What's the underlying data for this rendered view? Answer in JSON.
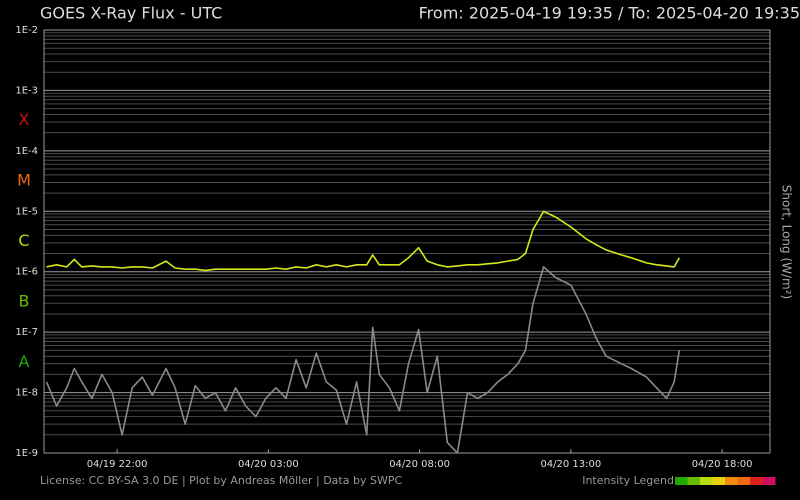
{
  "chart_data": {
    "type": "line",
    "title": "GOES X-Ray Flux - UTC",
    "range_label": "From: 2025-04-19 19:35  /  To: 2025-04-20 19:35",
    "y_label": "Short, Long (W/m²)",
    "footer": "License: CC BY-SA 3.0 DE | Plot by Andreas Möller | Data by SWPC",
    "log_scale": true,
    "grid": true,
    "minor_grid": true,
    "xlim": [
      "2025-04-19 19:35",
      "2025-04-20 19:35"
    ],
    "xticks": [
      {
        "value": "2025-04-19 22:00",
        "label": "04/19 22:00"
      },
      {
        "value": "2025-04-20 03:00",
        "label": "04/20 03:00"
      },
      {
        "value": "2025-04-20 08:00",
        "label": "04/20 08:00"
      },
      {
        "value": "2025-04-20 13:00",
        "label": "04/20 13:00"
      },
      {
        "value": "2025-04-20 18:00",
        "label": "04/20 18:00"
      }
    ],
    "ylim": [
      1e-09,
      0.01
    ],
    "yticks": [
      {
        "value": 1e-09,
        "label": "1E-9"
      },
      {
        "value": 1e-08,
        "label": "1E-8"
      },
      {
        "value": 1e-07,
        "label": "1E-7"
      },
      {
        "value": 1e-06,
        "label": "1E-6"
      },
      {
        "value": 1e-05,
        "label": "1E-5"
      },
      {
        "value": 0.0001,
        "label": "1E-4"
      },
      {
        "value": 0.001,
        "label": "1E-3"
      },
      {
        "value": 0.01,
        "label": "1E-2"
      }
    ],
    "classes": [
      {
        "name": "A",
        "min": 1e-08,
        "color": "#22aa00"
      },
      {
        "name": "B",
        "min": 1e-07,
        "color": "#66bb00"
      },
      {
        "name": "C",
        "min": 1e-06,
        "color": "#c8d810"
      },
      {
        "name": "M",
        "min": 1e-05,
        "color": "#ee6a10"
      },
      {
        "name": "X",
        "min": 0.0001,
        "color": "#cc1010"
      }
    ],
    "intensity_legend": {
      "label": "Intensity Legend",
      "colors": [
        "#22aa00",
        "#66bb00",
        "#b8d810",
        "#e8d010",
        "#ee8a10",
        "#ee6a10",
        "#dd2020",
        "#cc1060"
      ]
    },
    "x": [
      "2025-04-19 19:40",
      "2025-04-19 20:00",
      "2025-04-19 20:20",
      "2025-04-19 20:35",
      "2025-04-19 20:50",
      "2025-04-19 21:10",
      "2025-04-19 21:30",
      "2025-04-19 21:50",
      "2025-04-19 22:10",
      "2025-04-19 22:30",
      "2025-04-19 22:50",
      "2025-04-19 23:10",
      "2025-04-19 23:37",
      "2025-04-19 23:55",
      "2025-04-20 00:15",
      "2025-04-20 00:35",
      "2025-04-20 00:55",
      "2025-04-20 01:15",
      "2025-04-20 01:35",
      "2025-04-20 01:55",
      "2025-04-20 02:15",
      "2025-04-20 02:35",
      "2025-04-20 02:55",
      "2025-04-20 03:15",
      "2025-04-20 03:35",
      "2025-04-20 03:55",
      "2025-04-20 04:15",
      "2025-04-20 04:35",
      "2025-04-20 04:55",
      "2025-04-20 05:15",
      "2025-04-20 05:35",
      "2025-04-20 05:55",
      "2025-04-20 06:15",
      "2025-04-20 06:27",
      "2025-04-20 06:40",
      "2025-04-20 07:00",
      "2025-04-20 07:20",
      "2025-04-20 07:38",
      "2025-04-20 07:58",
      "2025-04-20 08:15",
      "2025-04-20 08:35",
      "2025-04-20 08:55",
      "2025-04-20 09:15",
      "2025-04-20 09:35",
      "2025-04-20 09:55",
      "2025-04-20 10:15",
      "2025-04-20 10:35",
      "2025-04-20 10:55",
      "2025-04-20 11:15",
      "2025-04-20 11:30",
      "2025-04-20 11:45",
      "2025-04-20 12:06",
      "2025-04-20 12:30",
      "2025-04-20 13:00",
      "2025-04-20 13:30",
      "2025-04-20 13:50",
      "2025-04-20 14:10",
      "2025-04-20 14:40",
      "2025-04-20 15:00",
      "2025-04-20 15:30",
      "2025-04-20 15:50",
      "2025-04-20 16:10",
      "2025-04-20 16:25",
      "2025-04-20 16:35"
    ],
    "series": [
      {
        "name": "Short",
        "color": "#8a8a8a",
        "values": [
          1.5e-08,
          6e-09,
          1.2e-08,
          2.5e-08,
          1.5e-08,
          8e-09,
          2e-08,
          1e-08,
          2e-09,
          1.2e-08,
          1.8e-08,
          9e-09,
          2.5e-08,
          1.2e-08,
          3e-09,
          1.3e-08,
          8e-09,
          1e-08,
          5e-09,
          1.2e-08,
          6e-09,
          4e-09,
          8e-09,
          1.2e-08,
          8e-09,
          3.5e-08,
          1.2e-08,
          4.5e-08,
          1.5e-08,
          1.1e-08,
          3e-09,
          1.5e-08,
          2e-09,
          1.2e-07,
          2e-08,
          1.2e-08,
          5e-09,
          3e-08,
          1.1e-07,
          1e-08,
          4e-08,
          1.5e-09,
          1e-09,
          1e-08,
          8e-09,
          1e-08,
          1.5e-08,
          2e-08,
          3e-08,
          5e-08,
          3e-07,
          1.2e-06,
          8e-07,
          6e-07,
          2e-07,
          8e-08,
          4e-08,
          3e-08,
          2.5e-08,
          1.8e-08,
          1.2e-08,
          8e-09,
          1.5e-08,
          5e-08
        ]
      },
      {
        "name": "Long",
        "color": "#d4e81a",
        "values": [
          1.2e-06,
          1.3e-06,
          1.2e-06,
          1.6e-06,
          1.2e-06,
          1.25e-06,
          1.2e-06,
          1.2e-06,
          1.15e-06,
          1.2e-06,
          1.2e-06,
          1.15e-06,
          1.5e-06,
          1.15e-06,
          1.1e-06,
          1.1e-06,
          1.05e-06,
          1.1e-06,
          1.1e-06,
          1.1e-06,
          1.1e-06,
          1.1e-06,
          1.1e-06,
          1.15e-06,
          1.1e-06,
          1.2e-06,
          1.15e-06,
          1.3e-06,
          1.2e-06,
          1.3e-06,
          1.2e-06,
          1.3e-06,
          1.3e-06,
          1.9e-06,
          1.3e-06,
          1.3e-06,
          1.3e-06,
          1.7e-06,
          2.5e-06,
          1.5e-06,
          1.3e-06,
          1.2e-06,
          1.25e-06,
          1.3e-06,
          1.3e-06,
          1.35e-06,
          1.4e-06,
          1.5e-06,
          1.6e-06,
          2e-06,
          5e-06,
          1e-05,
          8e-06,
          5.5e-06,
          3.5e-06,
          2.8e-06,
          2.3e-06,
          1.9e-06,
          1.7e-06,
          1.4e-06,
          1.3e-06,
          1.25e-06,
          1.2e-06,
          1.7e-06
        ]
      }
    ]
  }
}
